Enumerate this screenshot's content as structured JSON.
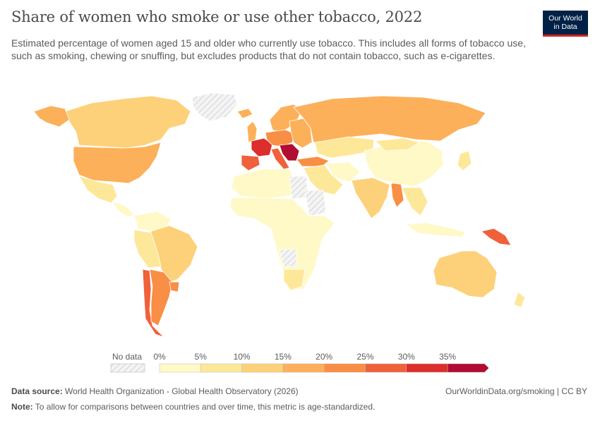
{
  "title": "Share of women who smoke or use other tobacco, 2022",
  "subtitle": "Estimated percentage of women aged 15 and older who currently use tobacco. This includes all forms of tobacco use, such as smoking, chewing or snuffing, but excludes products that do not contain tobacco, such as e-cigarettes.",
  "logo": {
    "line1": "Our World",
    "line2": "in Data"
  },
  "footer": {
    "source_label": "Data source:",
    "source_text": "World Health Organization - Global Health Observatory (2026)",
    "url_text": "OurWorldinData.org/smoking | CC BY",
    "note_label": "Note:",
    "note_text": "To allow for comparisons between countries and over time, this metric is age-standardized."
  },
  "chart_data": {
    "type": "choropleth-map",
    "year": "2022",
    "unit": "%",
    "legend": {
      "no_data_label": "No data",
      "ticks": [
        "0%",
        "5%",
        "10%",
        "15%",
        "20%",
        "25%",
        "30%",
        "35%"
      ],
      "bins": [
        {
          "from": 0,
          "to": 5,
          "color": "#fef9c6"
        },
        {
          "from": 5,
          "to": 10,
          "color": "#fde89a"
        },
        {
          "from": 10,
          "to": 15,
          "color": "#fdd17a"
        },
        {
          "from": 15,
          "to": 20,
          "color": "#fcb05a"
        },
        {
          "from": 20,
          "to": 25,
          "color": "#f98e45"
        },
        {
          "from": 25,
          "to": 30,
          "color": "#f0603a"
        },
        {
          "from": 30,
          "to": 35,
          "color": "#dc2e2c"
        },
        {
          "from": 35,
          "to": null,
          "color": "#b10c32"
        }
      ],
      "no_data_color": "#e6e6e6"
    },
    "regions": [
      {
        "name": "Canada",
        "bin": 2
      },
      {
        "name": "Alaska",
        "bin": 3
      },
      {
        "name": "United States",
        "bin": 3
      },
      {
        "name": "Greenland",
        "bin": -1
      },
      {
        "name": "Mexico",
        "bin": 1
      },
      {
        "name": "Central America",
        "bin": 0
      },
      {
        "name": "Colombia & Venezuela",
        "bin": 0
      },
      {
        "name": "Brazil",
        "bin": 2
      },
      {
        "name": "Peru & Bolivia",
        "bin": 1
      },
      {
        "name": "Chile",
        "bin": 5
      },
      {
        "name": "Argentina",
        "bin": 4
      },
      {
        "name": "Uruguay",
        "bin": 4
      },
      {
        "name": "Iceland",
        "bin": 3
      },
      {
        "name": "United Kingdom",
        "bin": 3
      },
      {
        "name": "Scandinavia",
        "bin": 3
      },
      {
        "name": "France",
        "bin": 6
      },
      {
        "name": "Spain",
        "bin": 5
      },
      {
        "name": "Germany & Central Europe",
        "bin": 4
      },
      {
        "name": "Italy",
        "bin": 5
      },
      {
        "name": "Balkans",
        "bin": 7
      },
      {
        "name": "Eastern Europe",
        "bin": 3
      },
      {
        "name": "Russia",
        "bin": 3
      },
      {
        "name": "Turkey",
        "bin": 4
      },
      {
        "name": "Central Asia",
        "bin": 1
      },
      {
        "name": "Middle East",
        "bin": 1
      },
      {
        "name": "Iran",
        "bin": 0
      },
      {
        "name": "North Africa",
        "bin": 0
      },
      {
        "name": "Sub-Saharan Africa",
        "bin": 0
      },
      {
        "name": "Libya",
        "bin": -1
      },
      {
        "name": "Sudan",
        "bin": -1
      },
      {
        "name": "Angola",
        "bin": -1
      },
      {
        "name": "South Africa",
        "bin": 1
      },
      {
        "name": "India",
        "bin": 2
      },
      {
        "name": "Myanmar",
        "bin": 4
      },
      {
        "name": "China",
        "bin": 0
      },
      {
        "name": "Mongolia",
        "bin": 1
      },
      {
        "name": "Japan",
        "bin": 1
      },
      {
        "name": "Southeast Asia",
        "bin": 1
      },
      {
        "name": "Indonesia",
        "bin": 0
      },
      {
        "name": "Papua New Guinea",
        "bin": 5
      },
      {
        "name": "Australia",
        "bin": 2
      },
      {
        "name": "New Zealand",
        "bin": 1
      }
    ]
  }
}
